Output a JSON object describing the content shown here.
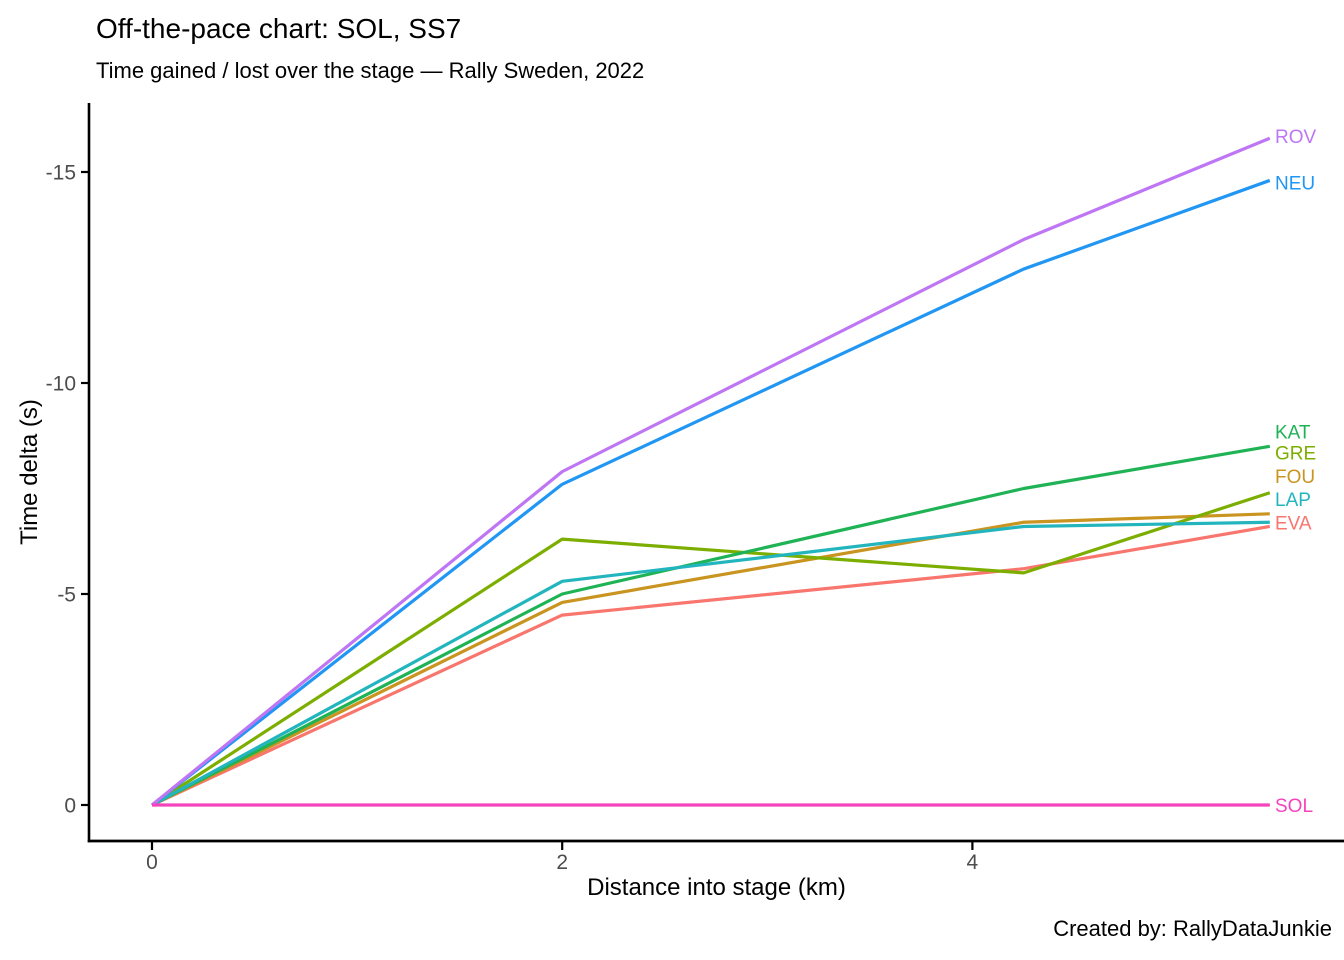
{
  "chart_data": {
    "type": "line",
    "title": "Off-the-pace chart: SOL, SS7",
    "subtitle": "Time gained / lost over the stage — Rally Sweden, 2022",
    "caption": "Created by: RallyDataJunkie",
    "xlabel": "Distance into stage (km)",
    "ylabel": "Time delta (s)",
    "x_km": [
      0,
      2,
      4.25,
      5.45
    ],
    "x_ticks": [
      0,
      2,
      4
    ],
    "y_ticks": [
      0,
      -5,
      -10,
      -15
    ],
    "xlim": [
      -0.3,
      5.8
    ],
    "ylim": [
      0.85,
      -16.6
    ],
    "y_axis_reversed": true,
    "grid": false,
    "legend": "direct colored labels at right ends of lines",
    "axis_color": "#000000",
    "tick_label_color": "#4D4D4D",
    "series": [
      {
        "name": "EVA",
        "color": "#F8766D",
        "values": [
          0,
          -4.5,
          -5.6,
          -6.6
        ],
        "label_at": -6.7
      },
      {
        "name": "FOU",
        "color": "#C9941F",
        "values": [
          0,
          -4.8,
          -6.7,
          -6.9
        ],
        "label_at": -7.8
      },
      {
        "name": "GRE",
        "color": "#7CAE00",
        "values": [
          0,
          -6.3,
          -5.5,
          -7.4
        ],
        "label_at": -8.35
      },
      {
        "name": "KAT",
        "color": "#1FB356",
        "values": [
          0,
          -5.0,
          -7.5,
          -8.5
        ],
        "label_at": -8.85
      },
      {
        "name": "LAP",
        "color": "#23B5BE",
        "values": [
          0,
          -5.3,
          -6.6,
          -6.7
        ],
        "label_at": -7.25
      },
      {
        "name": "NEU",
        "color": "#2196F3",
        "values": [
          0,
          -7.6,
          -12.7,
          -14.8
        ],
        "label_at": -14.75
      },
      {
        "name": "ROV",
        "color": "#BE76F4",
        "values": [
          0,
          -7.9,
          -13.4,
          -15.8
        ],
        "label_at": -15.85
      },
      {
        "name": "SOL",
        "color": "#F543BE",
        "values": [
          0,
          0,
          0,
          0
        ],
        "label_at": 0
      }
    ]
  }
}
